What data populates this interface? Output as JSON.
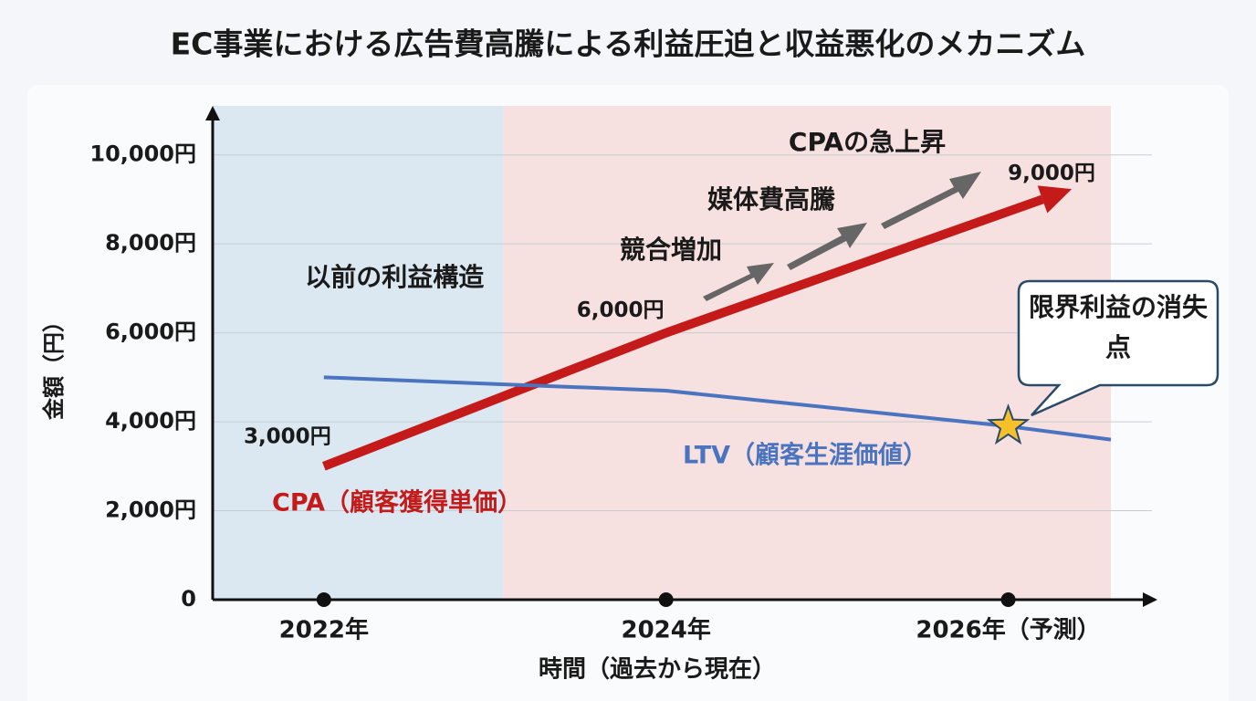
{
  "chart_data": {
    "type": "line",
    "title": "EC事業における広告費高騰による利益圧迫と収益悪化のメカニズム",
    "x_label": "時間（過去から現在）",
    "y_label": "金額（円）",
    "xlim": [
      2021.35,
      2026.84
    ],
    "xticks": [
      {
        "value": 2022,
        "label": "2022年"
      },
      {
        "value": 2024,
        "label": "2024年"
      },
      {
        "value": 2026,
        "label": "2026年（予測）"
      }
    ],
    "ylim": [
      0,
      11000
    ],
    "yticks": [
      0,
      {
        "value": 2000,
        "label": "2,000円"
      },
      {
        "value": 4000,
        "label": "4,000円"
      },
      {
        "value": 6000,
        "label": "6,000円"
      },
      {
        "value": 8000,
        "label": "8,000円"
      },
      {
        "value": 10000,
        "label": "10,000円"
      }
    ],
    "grid": true,
    "regions": [
      {
        "label": "以前の利益構造",
        "color": "#dce8f1",
        "x": [
          2021.35,
          2023.05
        ]
      },
      {
        "label": "",
        "color": "#f6e1e0",
        "x": [
          2023.05,
          2026.6
        ]
      }
    ],
    "series": [
      {
        "name": "CPA（顧客獲得単価）",
        "color": "#c41a1a",
        "x": [
          2022,
          2024,
          2026.2
        ],
        "values": [
          3000,
          6000,
          9000
        ],
        "value_labels": [
          "3,000円",
          "6,000円",
          "9,000円"
        ]
      },
      {
        "name": "LTV（顧客生涯価値）",
        "color": "#4a74c0",
        "x": [
          2022,
          2024,
          2026,
          2026.6
        ],
        "values": [
          5000,
          4700,
          3900,
          3600
        ]
      }
    ],
    "annotations": [
      "競合増加",
      "媒体費高騰",
      "CPAの急上昇"
    ],
    "callout": "限界利益の消失点"
  }
}
